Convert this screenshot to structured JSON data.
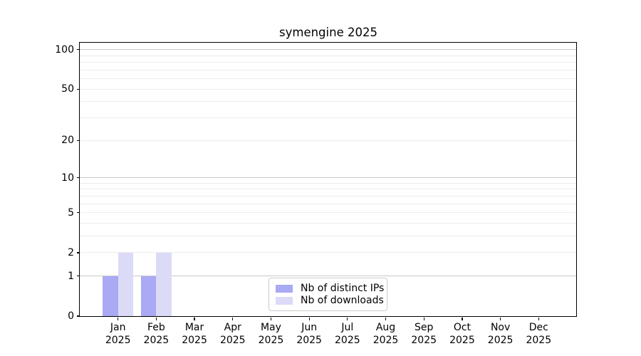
{
  "chart_data": {
    "type": "bar",
    "title": "symengine 2025",
    "xlabel": "",
    "ylabel": "",
    "categories": [
      "Jan 2025",
      "Feb 2025",
      "Mar 2025",
      "Apr 2025",
      "May 2025",
      "Jun 2025",
      "Jul 2025",
      "Aug 2025",
      "Sep 2025",
      "Oct 2025",
      "Nov 2025",
      "Dec 2025"
    ],
    "series": [
      {
        "name": "Nb of distinct IPs",
        "color": "#a9a9f4",
        "values": [
          1,
          1,
          0,
          0,
          0,
          0,
          0,
          0,
          0,
          0,
          0,
          0
        ]
      },
      {
        "name": "Nb of downloads",
        "color": "#dbdbf8",
        "values": [
          2,
          2,
          0,
          0,
          0,
          0,
          0,
          0,
          0,
          0,
          0,
          0
        ]
      }
    ],
    "yscale": "log1p",
    "ylim": [
      0,
      113
    ],
    "yticks": [
      0,
      1,
      2,
      5,
      10,
      20,
      50,
      100
    ],
    "grid": {
      "orientation": "horizontal",
      "major_values": [
        1,
        10,
        100
      ],
      "minor_values": [
        2,
        3,
        4,
        5,
        6,
        7,
        8,
        9,
        20,
        30,
        40,
        50,
        60,
        70,
        80,
        90
      ],
      "major_color": "#c8c8c8",
      "minor_color": "#ececec"
    },
    "legend": {
      "position": "lower center"
    },
    "bar_layout": {
      "pairing": "side-by-side, pair centered on month tick"
    },
    "spine_color": "#000000",
    "background_color": "#ffffff"
  }
}
